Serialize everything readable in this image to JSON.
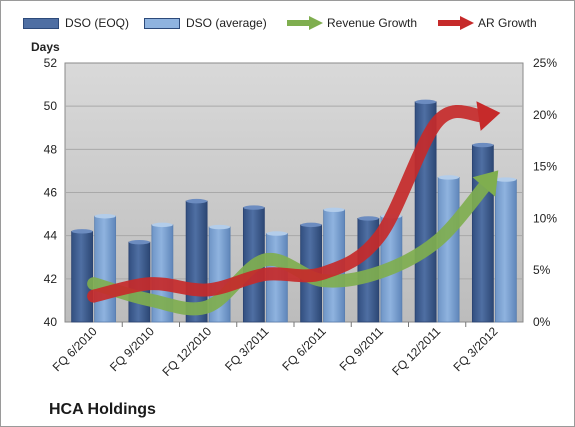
{
  "chart_data": {
    "type": "bar",
    "title": "HCA Holdings",
    "y_left_label": "Days",
    "categories": [
      "FQ 6/2010",
      "FQ 9/2010",
      "FQ 12/2010",
      "FQ 3/2011",
      "FQ 6/2011",
      "FQ 9/2011",
      "FQ 12/2011",
      "FQ 3/2012"
    ],
    "series": [
      {
        "name": "DSO (EOQ)",
        "type": "bar",
        "axis": "left",
        "values": [
          44.2,
          43.7,
          45.6,
          45.3,
          44.5,
          44.8,
          50.2,
          48.2
        ],
        "color": "#4f6fa3"
      },
      {
        "name": "DSO (average)",
        "type": "bar",
        "axis": "left",
        "values": [
          44.9,
          44.5,
          44.4,
          44.1,
          45.2,
          44.9,
          46.7,
          46.6
        ],
        "color": "#8fb3df"
      },
      {
        "name": "Revenue Growth",
        "type": "line",
        "axis": "right",
        "values": [
          0.037,
          0.021,
          0.015,
          0.06,
          0.04,
          0.048,
          0.078,
          0.142
        ],
        "color": "#7fae4f"
      },
      {
        "name": "AR Growth",
        "type": "line",
        "axis": "right",
        "values": [
          0.025,
          0.037,
          0.031,
          0.046,
          0.047,
          0.083,
          0.193,
          0.201
        ],
        "color": "#c62a2a"
      }
    ],
    "y_left": {
      "min": 40,
      "max": 52,
      "step": 2,
      "ticks": [
        "40",
        "42",
        "44",
        "46",
        "48",
        "50",
        "52"
      ]
    },
    "y_right": {
      "min": 0,
      "max": 0.25,
      "step": 0.05,
      "ticks": [
        "0%",
        "5%",
        "10%",
        "15%",
        "20%",
        "25%"
      ]
    },
    "plot_background": "#bcbcbc",
    "grid": true,
    "legend_position": "top"
  }
}
